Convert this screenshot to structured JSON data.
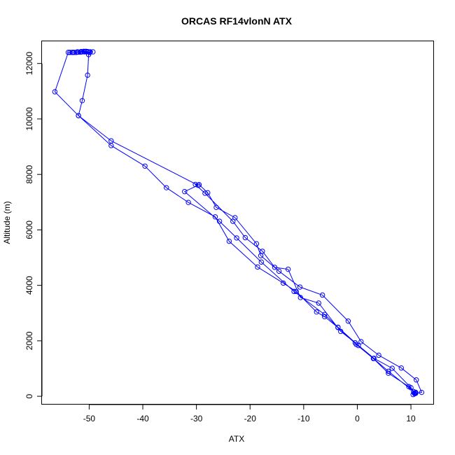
{
  "chart_data": {
    "type": "line",
    "title": "ORCAS RF14vlonN ATX",
    "xlabel": "ATX",
    "ylabel": "Altitude (m)",
    "xlim": [
      -58.8,
      14.3
    ],
    "ylim": [
      -300,
      12800
    ],
    "x_ticks": [
      -50,
      -40,
      -30,
      -20,
      -10,
      0,
      10
    ],
    "y_ticks": [
      0,
      2000,
      4000,
      6000,
      8000,
      10000,
      12000
    ],
    "series": [
      {
        "color": "#0000ff",
        "markers": "open-circle",
        "points": [
          [
            -49.3,
            12420
          ],
          [
            -49.8,
            12420
          ],
          [
            -50.2,
            12420
          ],
          [
            -50.6,
            12420
          ],
          [
            -50.9,
            12420
          ],
          [
            -51.3,
            12420
          ],
          [
            -51.6,
            12410
          ],
          [
            -52.0,
            12410
          ],
          [
            -52.4,
            12400
          ],
          [
            -52.8,
            12400
          ],
          [
            -53.2,
            12400
          ],
          [
            -53.6,
            12400
          ],
          [
            -53.9,
            12400
          ],
          [
            -56.4,
            10980
          ],
          [
            -52.0,
            10120
          ],
          [
            -45.9,
            9040
          ],
          [
            -39.6,
            8300
          ],
          [
            -35.6,
            7520
          ],
          [
            -31.5,
            6990
          ],
          [
            -26.5,
            6470
          ],
          [
            -23.9,
            5590
          ],
          [
            -18.6,
            4660
          ],
          [
            -13.8,
            4080
          ],
          [
            -11.4,
            3780
          ],
          [
            -7.6,
            3040
          ],
          [
            -6.1,
            2870
          ],
          [
            -3.6,
            2480
          ],
          [
            -0.2,
            1870
          ],
          [
            3.0,
            1360
          ],
          [
            5.8,
            830
          ],
          [
            9.6,
            350
          ],
          [
            10.8,
            130
          ],
          [
            10.4,
            60
          ],
          [
            10.9,
            110
          ],
          [
            12.0,
            140
          ],
          [
            11.0,
            590
          ],
          [
            8.2,
            1020
          ],
          [
            4.0,
            1480
          ],
          [
            0.7,
            1970
          ],
          [
            -1.7,
            2710
          ],
          [
            -6.5,
            3650
          ],
          [
            -10.7,
            3940
          ],
          [
            -14.6,
            4510
          ],
          [
            -18.0,
            5070
          ],
          [
            -18.8,
            5500
          ],
          [
            -22.8,
            6440
          ],
          [
            -26.3,
            6810
          ],
          [
            -27.9,
            7340
          ],
          [
            -29.5,
            7630
          ],
          [
            -30.2,
            7640
          ],
          [
            -28.4,
            7320
          ],
          [
            -23.2,
            6310
          ],
          [
            -20.9,
            5720
          ],
          [
            -17.7,
            5230
          ],
          [
            -15.4,
            4650
          ],
          [
            -12.9,
            4580
          ],
          [
            -10.6,
            3560
          ],
          [
            -7.2,
            3360
          ],
          [
            -3.1,
            2340
          ],
          [
            -0.4,
            1930
          ],
          [
            3.1,
            1370
          ],
          [
            6.5,
            1010
          ],
          [
            10.0,
            310
          ],
          [
            10.6,
            120
          ],
          [
            10.9,
            140
          ],
          [
            10.7,
            90
          ],
          [
            10.5,
            170
          ],
          [
            5.8,
            900
          ],
          [
            0.2,
            1830
          ],
          [
            -3.6,
            2490
          ],
          [
            -6.1,
            2950
          ],
          [
            -11.8,
            3780
          ],
          [
            -17.9,
            4840
          ],
          [
            -22.5,
            5710
          ],
          [
            -25.7,
            6310
          ],
          [
            -32.2,
            7380
          ],
          [
            -29.7,
            7610
          ],
          [
            -45.9,
            9210
          ],
          [
            -52.0,
            10120
          ],
          [
            -51.3,
            10660
          ],
          [
            -50.3,
            11580
          ],
          [
            -50.1,
            12320
          ],
          [
            -50.3,
            12430
          ],
          [
            -50.6,
            12440
          ],
          [
            -51.0,
            12440
          ],
          [
            -51.5,
            12430
          ],
          [
            -52.2,
            12420
          ],
          [
            -53.0,
            12400
          ],
          [
            -49.9,
            12400
          ]
        ]
      }
    ],
    "grid": false,
    "legend": "none"
  }
}
